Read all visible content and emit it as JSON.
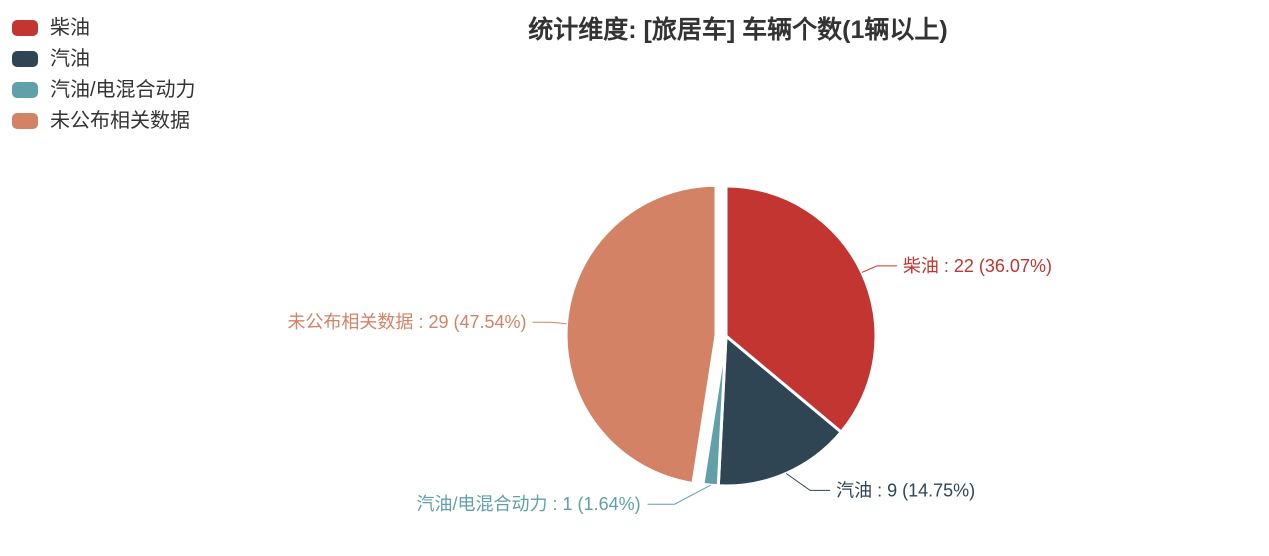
{
  "title": {
    "text": "统计维度: [旅居车] 车辆个数(1辆以上)"
  },
  "legend": {
    "items": [
      "柴油",
      "汽油",
      "汽油/电混合动力",
      "未公布相关数据"
    ]
  },
  "chart_data": {
    "type": "pie",
    "title": "统计维度: [旅居车] 车辆个数(1辆以上)",
    "labels": [
      "柴油",
      "汽油",
      "汽油/电混合动力",
      "未公布相关数据"
    ],
    "values": [
      22,
      9,
      1,
      29
    ],
    "percentages": [
      "36.07",
      "14.75",
      "1.64",
      "47.54"
    ],
    "colors": [
      "#c23531",
      "#2f4554",
      "#61a0a8",
      "#d48265"
    ],
    "label_separator": " : ",
    "selected_slice": "未公布相关数据",
    "legend_position": "top-left",
    "start_angle_deg": 0,
    "clockwise": true,
    "background": "#ffffff",
    "border_color": "#ffffff",
    "text_color": "#333333"
  }
}
